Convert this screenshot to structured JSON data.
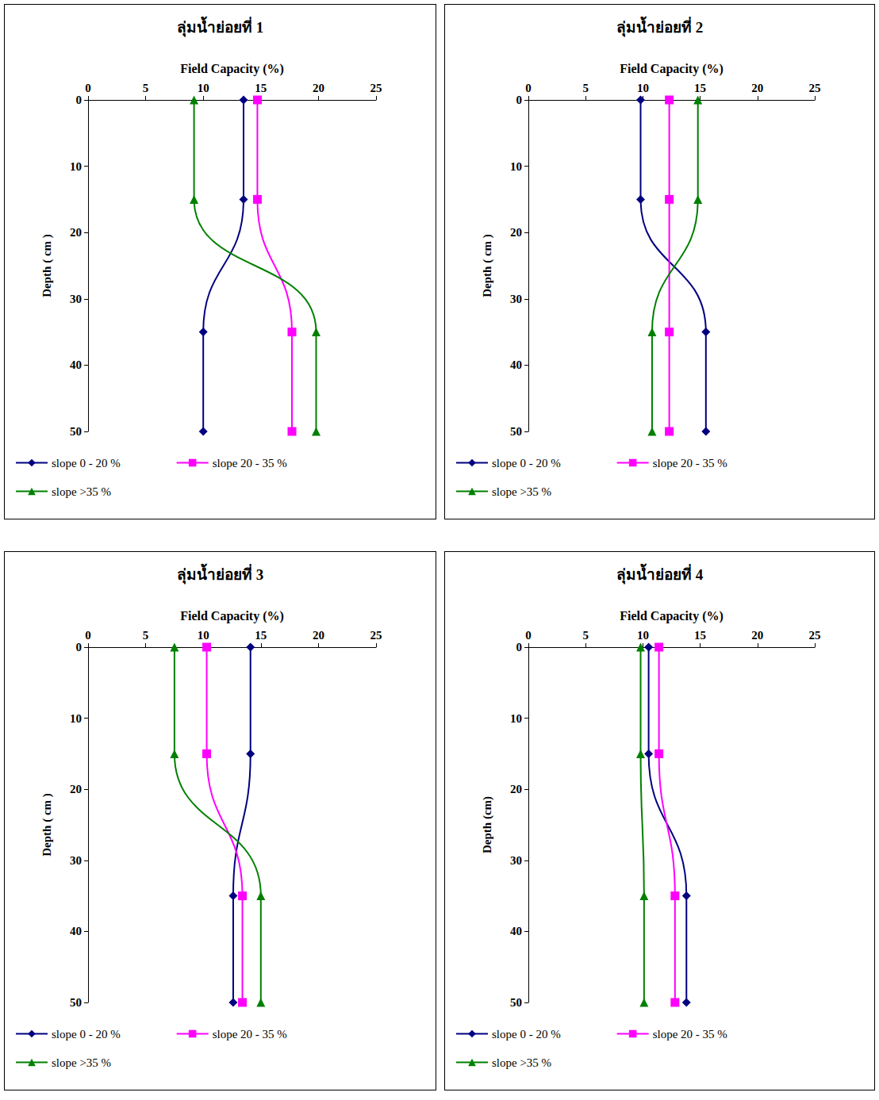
{
  "chart_data": [
    {
      "type": "line",
      "title": "ลุ่มน้ำย่อยที่ 1",
      "x_label": "Field Capacity (%)",
      "y_label": "Depth ( cm )",
      "xlim": [
        0,
        25
      ],
      "xticks": [
        0,
        5,
        10,
        15,
        20,
        25
      ],
      "ylim": [
        50,
        0
      ],
      "yticks": [
        0,
        10,
        20,
        30,
        40,
        50
      ],
      "grid": false,
      "y": [
        0,
        15,
        35,
        50
      ],
      "series": [
        {
          "name": "slope 0 - 20 %",
          "color": "#000080",
          "marker": "diamond",
          "values": [
            13.5,
            13.5,
            10.0,
            10.0
          ]
        },
        {
          "name": "slope 20 - 35 %",
          "color": "#ff00ff",
          "marker": "square",
          "values": [
            14.7,
            14.7,
            17.7,
            17.7
          ]
        },
        {
          "name": "slope >35 %",
          "color": "#008000",
          "marker": "triangle",
          "values": [
            9.2,
            9.2,
            19.8,
            19.8
          ]
        }
      ]
    },
    {
      "type": "line",
      "title": "ลุ่มน้ำย่อยที่ 2",
      "x_label": "Field Capacity (%)",
      "y_label": "Depth ( cm )",
      "xlim": [
        0,
        25
      ],
      "xticks": [
        0,
        5,
        10,
        15,
        20,
        25
      ],
      "ylim": [
        50,
        0
      ],
      "yticks": [
        0,
        10,
        20,
        30,
        40,
        50
      ],
      "grid": false,
      "y": [
        0,
        15,
        35,
        50
      ],
      "series": [
        {
          "name": "slope 0 - 20 %",
          "color": "#000080",
          "marker": "diamond",
          "values": [
            9.8,
            9.8,
            15.5,
            15.5
          ]
        },
        {
          "name": "slope 20 - 35 %",
          "color": "#ff00ff",
          "marker": "square",
          "values": [
            12.3,
            12.3,
            12.3,
            12.3
          ]
        },
        {
          "name": "slope >35 %",
          "color": "#008000",
          "marker": "triangle",
          "values": [
            14.8,
            14.8,
            10.8,
            10.8
          ]
        }
      ]
    },
    {
      "type": "line",
      "title": "ลุ่มน้ำย่อยที่ 3",
      "x_label": "Field Capacity (%)",
      "y_label": "Depth ( cm )",
      "xlim": [
        0,
        25
      ],
      "xticks": [
        0,
        5,
        10,
        15,
        20,
        25
      ],
      "ylim": [
        50,
        0
      ],
      "yticks": [
        0,
        10,
        20,
        30,
        40,
        50
      ],
      "grid": false,
      "y": [
        0,
        15,
        35,
        50
      ],
      "series": [
        {
          "name": "slope 0 - 20 %",
          "color": "#000080",
          "marker": "diamond",
          "values": [
            14.1,
            14.1,
            12.6,
            12.6
          ]
        },
        {
          "name": "slope 20 - 35 %",
          "color": "#ff00ff",
          "marker": "square",
          "values": [
            10.3,
            10.3,
            13.4,
            13.4
          ]
        },
        {
          "name": "slope >35 %",
          "color": "#008000",
          "marker": "triangle",
          "values": [
            7.5,
            7.5,
            15.0,
            15.0
          ]
        }
      ]
    },
    {
      "type": "line",
      "title": "ลุ่มน้ำย่อยที่ 4",
      "x_label": "Field Capacity (%)",
      "y_label": "Depth (cm)",
      "xlim": [
        0,
        25
      ],
      "xticks": [
        0,
        5,
        10,
        15,
        20,
        25
      ],
      "ylim": [
        50,
        0
      ],
      "yticks": [
        0,
        10,
        20,
        30,
        40,
        50
      ],
      "grid": false,
      "y": [
        0,
        15,
        35,
        50
      ],
      "series": [
        {
          "name": "slope 0 - 20 %",
          "color": "#000080",
          "marker": "diamond",
          "values": [
            10.5,
            10.5,
            13.8,
            13.8
          ]
        },
        {
          "name": "slope 20 - 35 %",
          "color": "#ff00ff",
          "marker": "square",
          "values": [
            11.4,
            11.4,
            12.8,
            12.8
          ]
        },
        {
          "name": "slope >35 %",
          "color": "#008000",
          "marker": "triangle",
          "values": [
            9.8,
            9.8,
            10.1,
            10.1
          ]
        }
      ]
    }
  ]
}
